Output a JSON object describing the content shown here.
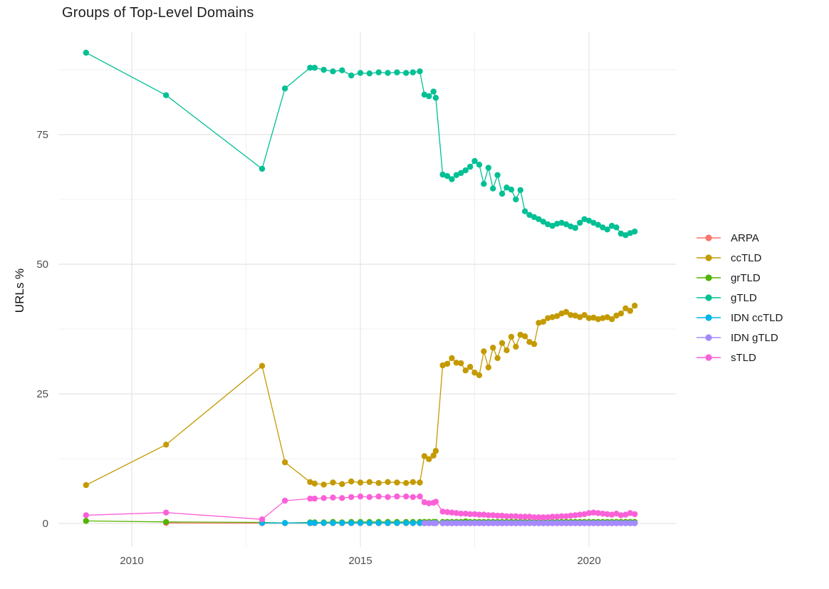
{
  "chart_data": {
    "type": "line",
    "title": "Groups of Top-Level Domains",
    "xlabel": "",
    "ylabel": "URLs %",
    "grid": true,
    "legend_position": "right",
    "xlim": [
      2008.4,
      2021.9
    ],
    "ylim": [
      -4,
      94.8
    ],
    "x_ticks": [
      2010,
      2015,
      2020
    ],
    "x_tick_labels": [
      "2010",
      "2015",
      "2020"
    ],
    "x_minor": [
      2012.5,
      2017.5
    ],
    "y_ticks": [
      0,
      25,
      50,
      75
    ],
    "y_tick_labels": [
      "0",
      "25",
      "50",
      "75"
    ],
    "y_minor": [
      12.5,
      37.5,
      62.5,
      87.5
    ],
    "x": [
      2009.0,
      2010.75,
      2012.85,
      2013.35,
      2013.9,
      2014.0,
      2014.2,
      2014.4,
      2014.6,
      2014.8,
      2015.0,
      2015.2,
      2015.4,
      2015.6,
      2015.8,
      2016.0,
      2016.15,
      2016.3,
      2016.4,
      2016.5,
      2016.6,
      2016.65,
      2016.8,
      2016.9,
      2017.0,
      2017.1,
      2017.2,
      2017.3,
      2017.4,
      2017.5,
      2017.6,
      2017.7,
      2017.8,
      2017.9,
      2018.0,
      2018.1,
      2018.2,
      2018.3,
      2018.4,
      2018.5,
      2018.6,
      2018.7,
      2018.8,
      2018.9,
      2019.0,
      2019.1,
      2019.2,
      2019.3,
      2019.4,
      2019.5,
      2019.6,
      2019.7,
      2019.8,
      2019.9,
      2020.0,
      2020.1,
      2020.2,
      2020.3,
      2020.4,
      2020.5,
      2020.6,
      2020.7,
      2020.8,
      2020.9,
      2021.0
    ],
    "series": [
      {
        "name": "ARPA",
        "color": "#F8766D",
        "values": [
          null,
          0.1,
          0.05,
          0.05,
          0.05,
          0.05,
          0.05,
          0.05,
          0.05,
          0.05,
          0.05,
          0.05,
          0.05,
          0.05,
          0.05,
          0.05,
          0.05,
          0.05,
          0.05,
          0.05,
          0.05,
          0.05,
          0.05,
          0.05,
          0.05,
          0.05,
          0.05,
          0.05,
          0.05,
          0.05,
          0.05,
          0.05,
          0.05,
          0.05,
          0.05,
          0.05,
          0.05,
          0.05,
          0.05,
          0.05,
          0.05,
          0.05,
          0.05,
          0.05,
          0.05,
          0.05,
          0.05,
          0.05,
          0.05,
          0.05,
          0.05,
          0.05,
          0.05,
          0.05,
          0.05,
          0.05,
          0.05,
          0.05,
          0.05,
          0.05,
          0.05,
          0.05,
          0.05,
          0.05,
          0.05
        ]
      },
      {
        "name": "ccTLD",
        "color": "#C49A00",
        "values": [
          7.4,
          15.2,
          30.4,
          11.8,
          8.0,
          7.7,
          7.5,
          7.9,
          7.6,
          8.1,
          7.9,
          8.0,
          7.8,
          8.0,
          7.9,
          7.8,
          8.0,
          7.9,
          13.0,
          12.4,
          13.1,
          14.0,
          30.5,
          30.8,
          31.9,
          31.0,
          30.9,
          29.5,
          30.2,
          29.1,
          28.6,
          33.2,
          30.1,
          33.9,
          31.9,
          34.8,
          33.4,
          36.0,
          34.1,
          36.4,
          36.1,
          35.0,
          34.6,
          38.7,
          38.9,
          39.6,
          39.8,
          40.0,
          40.5,
          40.8,
          40.2,
          40.1,
          39.8,
          40.2,
          39.6,
          39.7,
          39.4,
          39.6,
          39.8,
          39.4,
          40.1,
          40.5,
          41.5,
          41.0,
          42.0
        ]
      },
      {
        "name": "grTLD",
        "color": "#53B400",
        "values": [
          0.5,
          0.3,
          0.2,
          0.1,
          0.2,
          0.2,
          0.2,
          0.3,
          0.2,
          0.3,
          0.3,
          0.3,
          0.3,
          0.3,
          0.3,
          0.3,
          0.3,
          0.3,
          0.3,
          0.3,
          0.3,
          0.3,
          0.3,
          0.3,
          0.3,
          0.3,
          0.3,
          0.4,
          0.3,
          0.3,
          0.3,
          0.3,
          0.3,
          0.3,
          0.3,
          0.3,
          0.3,
          0.3,
          0.3,
          0.3,
          0.3,
          0.3,
          0.3,
          0.3,
          0.3,
          0.3,
          0.3,
          0.3,
          0.3,
          0.3,
          0.3,
          0.3,
          0.3,
          0.3,
          0.3,
          0.3,
          0.3,
          0.3,
          0.3,
          0.3,
          0.3,
          0.3,
          0.3,
          0.3,
          0.3
        ]
      },
      {
        "name": "gTLD",
        "color": "#00C094",
        "values": [
          90.8,
          82.6,
          68.4,
          83.9,
          87.9,
          87.9,
          87.5,
          87.2,
          87.4,
          86.4,
          86.9,
          86.8,
          87.0,
          86.9,
          87.0,
          86.9,
          87.0,
          87.2,
          82.7,
          82.4,
          83.3,
          82.1,
          67.3,
          67.0,
          66.4,
          67.2,
          67.6,
          68.1,
          68.8,
          69.9,
          69.2,
          65.5,
          68.6,
          64.6,
          67.2,
          63.6,
          64.8,
          64.4,
          62.5,
          64.3,
          60.2,
          59.5,
          59.1,
          58.7,
          58.2,
          57.7,
          57.4,
          57.8,
          58.0,
          57.7,
          57.3,
          57.0,
          58.0,
          58.7,
          58.4,
          58.0,
          57.6,
          57.1,
          56.7,
          57.4,
          57.1,
          55.9,
          55.6,
          56.0,
          56.3
        ]
      },
      {
        "name": "IDN ccTLD",
        "color": "#00B6EB",
        "values": [
          null,
          null,
          0.1,
          0.1,
          0.1,
          0.1,
          0.1,
          0.1,
          0.1,
          0.1,
          0.1,
          0.1,
          0.1,
          0.1,
          0.1,
          0.1,
          0.1,
          0.1,
          0.1,
          0.1,
          0.1,
          0.1,
          0.1,
          0.1,
          0.1,
          0.1,
          0.1,
          0.1,
          0.1,
          0.1,
          0.1,
          0.1,
          0.1,
          0.1,
          0.1,
          0.1,
          0.1,
          0.1,
          0.1,
          0.1,
          0.1,
          0.1,
          0.1,
          0.1,
          0.1,
          0.1,
          0.1,
          0.1,
          0.1,
          0.1,
          0.1,
          0.1,
          0.1,
          0.1,
          0.1,
          0.1,
          0.1,
          0.1,
          0.1,
          0.1,
          0.1,
          0.1,
          0.1,
          0.1,
          0.1
        ]
      },
      {
        "name": "IDN gTLD",
        "color": "#A58AFF",
        "values": [
          null,
          null,
          null,
          null,
          null,
          null,
          null,
          null,
          null,
          null,
          null,
          null,
          null,
          null,
          null,
          null,
          null,
          null,
          0.05,
          0.05,
          0.05,
          0.05,
          0.05,
          0.05,
          0.05,
          0.05,
          0.05,
          0.05,
          0.05,
          0.05,
          0.05,
          0.05,
          0.05,
          0.05,
          0.05,
          0.05,
          0.05,
          0.05,
          0.05,
          0.05,
          0.05,
          0.05,
          0.05,
          0.05,
          0.05,
          0.05,
          0.05,
          0.05,
          0.05,
          0.05,
          0.05,
          0.05,
          0.05,
          0.05,
          0.05,
          0.05,
          0.05,
          0.05,
          0.05,
          0.05,
          0.05,
          0.05,
          0.05,
          0.05,
          0.05
        ]
      },
      {
        "name": "sTLD",
        "color": "#FB61D7",
        "values": [
          1.6,
          2.1,
          0.8,
          4.4,
          4.8,
          4.8,
          4.9,
          5.0,
          4.9,
          5.1,
          5.2,
          5.1,
          5.2,
          5.1,
          5.2,
          5.2,
          5.1,
          5.2,
          4.1,
          3.9,
          4.0,
          4.2,
          2.3,
          2.2,
          2.1,
          2.0,
          1.9,
          1.9,
          1.8,
          1.8,
          1.7,
          1.7,
          1.6,
          1.6,
          1.5,
          1.5,
          1.4,
          1.4,
          1.4,
          1.3,
          1.3,
          1.3,
          1.2,
          1.2,
          1.2,
          1.2,
          1.3,
          1.3,
          1.4,
          1.4,
          1.5,
          1.6,
          1.7,
          1.8,
          2.0,
          2.1,
          2.0,
          1.9,
          1.8,
          1.7,
          1.9,
          1.6,
          1.7,
          2.0,
          1.8
        ]
      }
    ]
  },
  "legend": {
    "items": [
      {
        "label": "ARPA",
        "color": "#F8766D"
      },
      {
        "label": "ccTLD",
        "color": "#C49A00"
      },
      {
        "label": "grTLD",
        "color": "#53B400"
      },
      {
        "label": "gTLD",
        "color": "#00C094"
      },
      {
        "label": "IDN ccTLD",
        "color": "#00B6EB"
      },
      {
        "label": "IDN gTLD",
        "color": "#A58AFF"
      },
      {
        "label": "sTLD",
        "color": "#FB61D7"
      }
    ]
  },
  "style_colors": {
    "background": "#ffffff",
    "grid_major": "#e4e4e4",
    "grid_minor": "#f0f0f0",
    "tick_label": "#4d4d4d",
    "title_text": "#1d1d1d"
  }
}
